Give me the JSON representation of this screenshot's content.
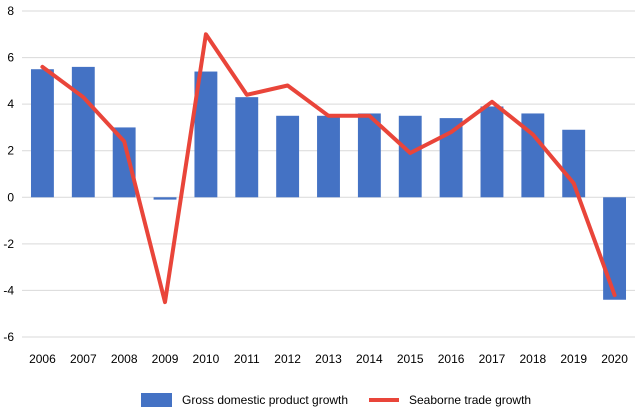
{
  "chart_data": {
    "type": "bar",
    "categories": [
      "2006",
      "2007",
      "2008",
      "2009",
      "2010",
      "2011",
      "2012",
      "2013",
      "2014",
      "2015",
      "2016",
      "2017",
      "2018",
      "2019",
      "2020"
    ],
    "series": [
      {
        "name": "Gross domestic product growth",
        "type": "bar",
        "color": "#4472c4",
        "values": [
          5.5,
          5.6,
          3.0,
          -0.1,
          5.4,
          4.3,
          3.5,
          3.5,
          3.6,
          3.5,
          3.4,
          3.9,
          3.6,
          2.9,
          -4.4
        ]
      },
      {
        "name": "Seaborne trade growth",
        "type": "line",
        "color": "#e9453a",
        "values": [
          5.6,
          4.3,
          2.4,
          -4.5,
          7.0,
          4.4,
          4.8,
          3.5,
          3.5,
          1.9,
          2.8,
          4.1,
          2.7,
          0.6,
          -4.2
        ]
      }
    ],
    "yticks": [
      -6,
      -4,
      -2,
      0,
      2,
      4,
      6,
      8
    ],
    "ylim": [
      -6,
      8
    ],
    "xlabel": "",
    "ylabel": "",
    "title": "",
    "grid": true,
    "legend_position": "bottom"
  }
}
